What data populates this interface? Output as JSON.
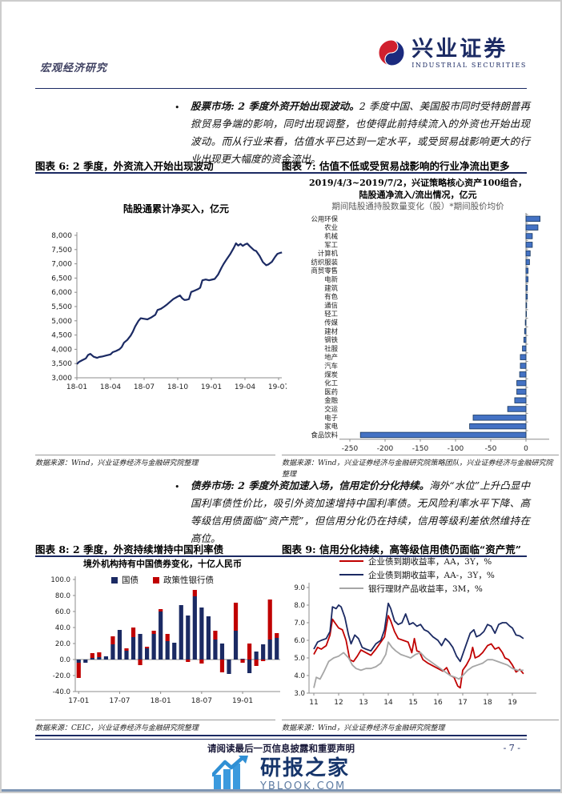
{
  "header": {
    "category": "宏观经济研究",
    "brand": "兴业证券",
    "brand_sub": "INDUSTRIAL SECURITIES"
  },
  "bullets": [
    {
      "marker": "•",
      "lead": "股票市场: 2 季度外资开始出现波动。",
      "body": "2 季度中国、美国股市同时受特朗普再掀贸易争端的影响，同时出现调整，也使得此前持续流入的外资也开始出现波动。而从行业来看，估值水平已达到一定水平，或受贸易战影响更大的行业出现更大幅度的资金流出。"
    },
    {
      "marker": "•",
      "lead": "债券市场: 2 季度外资加速入场，信用定价分化持续。",
      "body": "海外“水位”上升凸显中国利率债性价比，吸引外资加速增持中国利率债。无风险利率水平下降、高等级信用债面临“资产荒”，但信用分化仍在持续，信用等级利差依然维持在高位。"
    }
  ],
  "figures": {
    "fig6": {
      "title": "图表 6: 2 季度，外资流入开始出现波动",
      "source": "数据来源：Wind，兴业证券经济与金融研究院整理"
    },
    "fig7": {
      "title": "图表 7: 估值不低或受贸易战影响的行业净流出更多",
      "subtitle1": "2019/4/3~2019/7/2，兴证策略核心资产100组合，",
      "subtitle2": "陆股通净流入/流出情况，亿元",
      "subtitle3": "期间陆股通持股数量变化（股）*期间股价均价",
      "source": "数据来源：Wind，兴业证券经济与金融研究院策略团队，兴业证券经济与金融研究院整理"
    },
    "fig8": {
      "title": "图表 8: 2 季度，外资持续增持中国利率债",
      "source": "数据来源：CEIC，兴业证券经济与金融研究院整理"
    },
    "fig9": {
      "title": "图表 9: 信用分化持续，高等级信用债仍面临“资产荒”",
      "source": "数据来源：Wind，兴业证券经济与金融研究院整理"
    }
  },
  "footer": {
    "disclaimer": "请阅读最后一页信息披露和重要声明",
    "page_number": "- 7 -",
    "watermark_title": "研报之家",
    "watermark_domain": "YBLOOK.COM"
  },
  "colors": {
    "navy": "#1b2a63",
    "red": "#c00000",
    "gray_line": "#a6a6a6",
    "bar_blue": "#4472c4",
    "bar_blue_border": "#17375e",
    "axis": "#8c8c8c",
    "rule_navy": "#1b2a63",
    "watermark_blue": "#3b9ade"
  },
  "chart_data": [
    {
      "id": "fig6",
      "type": "line",
      "title": "陆股通累计净买入，亿元",
      "color": "#1b2a63",
      "ylim": [
        3000,
        8000
      ],
      "y_step": 500,
      "x_ticks": [
        "18-01",
        "18-04",
        "18-07",
        "18-10",
        "19-01",
        "19-04",
        "19-07"
      ],
      "x_tick_months": [
        0,
        3,
        6,
        9,
        12,
        15,
        18
      ],
      "points": [
        [
          0,
          3480
        ],
        [
          0.2,
          3560
        ],
        [
          0.5,
          3620
        ],
        [
          0.8,
          3680
        ],
        [
          1.0,
          3800
        ],
        [
          1.2,
          3840
        ],
        [
          1.5,
          3740
        ],
        [
          1.8,
          3700
        ],
        [
          2.0,
          3730
        ],
        [
          2.3,
          3750
        ],
        [
          2.6,
          3780
        ],
        [
          3.0,
          3820
        ],
        [
          3.2,
          3900
        ],
        [
          3.5,
          3940
        ],
        [
          3.8,
          4000
        ],
        [
          4.0,
          4080
        ],
        [
          4.2,
          4230
        ],
        [
          4.5,
          4330
        ],
        [
          4.8,
          4480
        ],
        [
          5.0,
          4620
        ],
        [
          5.2,
          4800
        ],
        [
          5.5,
          5000
        ],
        [
          5.7,
          5090
        ],
        [
          6.0,
          5070
        ],
        [
          6.3,
          5050
        ],
        [
          6.6,
          5110
        ],
        [
          7.0,
          5210
        ],
        [
          7.2,
          5380
        ],
        [
          7.5,
          5420
        ],
        [
          7.8,
          5500
        ],
        [
          8.0,
          5560
        ],
        [
          8.3,
          5660
        ],
        [
          8.6,
          5760
        ],
        [
          9.0,
          5850
        ],
        [
          9.2,
          5890
        ],
        [
          9.4,
          5790
        ],
        [
          9.6,
          5730
        ],
        [
          9.8,
          5740
        ],
        [
          10.0,
          5760
        ],
        [
          10.2,
          6010
        ],
        [
          10.5,
          6060
        ],
        [
          10.8,
          6110
        ],
        [
          11.0,
          6160
        ],
        [
          11.2,
          6420
        ],
        [
          11.5,
          6450
        ],
        [
          11.8,
          6420
        ],
        [
          12.0,
          6440
        ],
        [
          12.3,
          6470
        ],
        [
          12.6,
          6620
        ],
        [
          12.9,
          6860
        ],
        [
          13.1,
          7000
        ],
        [
          13.4,
          7180
        ],
        [
          13.7,
          7350
        ],
        [
          14.0,
          7560
        ],
        [
          14.2,
          7720
        ],
        [
          14.4,
          7640
        ],
        [
          14.6,
          7700
        ],
        [
          14.8,
          7630
        ],
        [
          15.0,
          7680
        ],
        [
          15.2,
          7710
        ],
        [
          15.5,
          7590
        ],
        [
          15.8,
          7480
        ],
        [
          16.0,
          7450
        ],
        [
          16.3,
          7280
        ],
        [
          16.6,
          7060
        ],
        [
          16.9,
          6950
        ],
        [
          17.1,
          6980
        ],
        [
          17.4,
          7070
        ],
        [
          17.7,
          7250
        ],
        [
          17.9,
          7350
        ],
        [
          18.1,
          7380
        ],
        [
          18.3,
          7400
        ]
      ]
    },
    {
      "id": "fig7",
      "type": "bar",
      "orientation": "horizontal",
      "bar_color": "#4472c4",
      "bar_border": "#17375e",
      "xlim": [
        -262,
        28
      ],
      "x_ticks": [
        -250,
        -200,
        -150,
        -100,
        -50,
        0
      ],
      "categories": [
        "公用环保",
        "农业",
        "机械",
        "军工",
        "计算机",
        "纺织服装",
        "商贸零售",
        "电新",
        "建筑",
        "有色",
        "通信",
        "轻工",
        "传媒",
        "建材",
        "钢铁",
        "社服",
        "地产",
        "汽车",
        "煤炭",
        "化工",
        "医药",
        "金融",
        "交运",
        "电子",
        "家电",
        "食品饮料"
      ],
      "values": [
        20,
        17,
        9,
        9,
        6,
        5,
        3,
        3,
        2,
        2,
        1,
        0.5,
        -1,
        -2,
        -3,
        -5,
        -8,
        -8,
        -9,
        -13,
        -13,
        -16,
        -26,
        -75,
        -80,
        -235
      ]
    },
    {
      "id": "fig8",
      "type": "stacked-bar",
      "title": "境外机构持有中国债券变化，十亿人民币",
      "ylim": [
        -40,
        100
      ],
      "y_step": 20,
      "x_tick_labels": [
        "17-01",
        "17-07",
        "18-01",
        "18-07",
        "19-01"
      ],
      "x_tick_positions": [
        0,
        6,
        12,
        18,
        24
      ],
      "n_months": 30,
      "series": [
        {
          "name": "国债",
          "color": "#1b2a63",
          "values": [
            -4,
            -4,
            2,
            3,
            4,
            19,
            37,
            11,
            28,
            32,
            14,
            32,
            60,
            23,
            21,
            68,
            55,
            79,
            65,
            54,
            25,
            20,
            -18,
            36,
            1,
            -17,
            10,
            19,
            25,
            27
          ]
        },
        {
          "name": "政策性银行债",
          "color": "#c00000",
          "values": [
            -19,
            0,
            6,
            6,
            0,
            10,
            0,
            3,
            12,
            -7,
            2,
            4,
            3,
            9,
            0,
            0,
            -3,
            8,
            -5,
            0,
            11,
            -16,
            0,
            35,
            -4,
            20,
            -8,
            -2,
            50,
            6
          ]
        }
      ]
    },
    {
      "id": "fig9",
      "type": "line",
      "ylim": [
        3.0,
        9.0
      ],
      "y_step": 1.0,
      "xlim": [
        10.85,
        19.9
      ],
      "x_ticks": [
        11,
        12,
        13,
        14,
        15,
        16,
        17,
        18,
        19
      ],
      "series": [
        {
          "name": "企业债到期收益率，AA，3Y，%",
          "color": "#c00000",
          "points": [
            [
              11.0,
              5.2
            ],
            [
              11.15,
              5.6
            ],
            [
              11.3,
              5.5
            ],
            [
              11.5,
              5.7
            ],
            [
              11.65,
              6.3
            ],
            [
              11.75,
              7.2
            ],
            [
              11.85,
              7.0
            ],
            [
              12.0,
              6.7
            ],
            [
              12.15,
              6.6
            ],
            [
              12.3,
              6.0
            ],
            [
              12.45,
              4.9
            ],
            [
              12.6,
              4.8
            ],
            [
              12.75,
              5.1
            ],
            [
              12.9,
              5.45
            ],
            [
              13.1,
              5.3
            ],
            [
              13.3,
              5.15
            ],
            [
              13.5,
              5.5
            ],
            [
              13.7,
              5.9
            ],
            [
              13.85,
              6.2
            ],
            [
              14.0,
              7.4
            ],
            [
              14.1,
              7.1
            ],
            [
              14.25,
              6.5
            ],
            [
              14.4,
              6.1
            ],
            [
              14.6,
              6.0
            ],
            [
              14.8,
              5.9
            ],
            [
              14.95,
              5.3
            ],
            [
              15.05,
              6.1
            ],
            [
              15.15,
              5.4
            ],
            [
              15.25,
              5.35
            ],
            [
              15.4,
              4.9
            ],
            [
              15.6,
              4.7
            ],
            [
              15.8,
              4.55
            ],
            [
              16.0,
              4.4
            ],
            [
              16.2,
              4.25
            ],
            [
              16.35,
              4.45
            ],
            [
              16.5,
              4.0
            ],
            [
              16.65,
              3.9
            ],
            [
              16.8,
              3.4
            ],
            [
              16.9,
              3.3
            ],
            [
              17.0,
              4.3
            ],
            [
              17.15,
              4.6
            ],
            [
              17.3,
              5.0
            ],
            [
              17.4,
              5.6
            ],
            [
              17.5,
              5.0
            ],
            [
              17.65,
              5.1
            ],
            [
              17.8,
              5.3
            ],
            [
              18.0,
              5.7
            ],
            [
              18.15,
              5.8
            ],
            [
              18.3,
              5.5
            ],
            [
              18.45,
              5.6
            ],
            [
              18.6,
              5.3
            ],
            [
              18.7,
              5.0
            ],
            [
              18.85,
              4.9
            ],
            [
              19.0,
              4.6
            ],
            [
              19.15,
              4.2
            ],
            [
              19.3,
              4.35
            ],
            [
              19.45,
              4.1
            ]
          ]
        },
        {
          "name": "企业债到期收益率，AA-，3Y，%",
          "color": "#1b2a63",
          "points": [
            [
              11.0,
              5.5
            ],
            [
              11.15,
              5.9
            ],
            [
              11.3,
              6.0
            ],
            [
              11.5,
              6.1
            ],
            [
              11.65,
              6.5
            ],
            [
              11.75,
              7.9
            ],
            [
              11.9,
              7.8
            ],
            [
              12.0,
              8.0
            ],
            [
              12.1,
              7.9
            ],
            [
              12.25,
              7.3
            ],
            [
              12.4,
              6.3
            ],
            [
              12.5,
              5.8
            ],
            [
              12.65,
              6.3
            ],
            [
              12.8,
              6.1
            ],
            [
              12.95,
              5.6
            ],
            [
              13.1,
              5.5
            ],
            [
              13.3,
              5.4
            ],
            [
              13.5,
              5.8
            ],
            [
              13.7,
              6.0
            ],
            [
              13.85,
              6.6
            ],
            [
              14.0,
              8.1
            ],
            [
              14.1,
              7.8
            ],
            [
              14.25,
              7.1
            ],
            [
              14.4,
              6.9
            ],
            [
              14.55,
              7.0
            ],
            [
              14.7,
              7.5
            ],
            [
              14.85,
              6.9
            ],
            [
              15.0,
              7.0
            ],
            [
              15.15,
              6.8
            ],
            [
              15.3,
              6.9
            ],
            [
              15.45,
              6.6
            ],
            [
              15.6,
              6.5
            ],
            [
              15.8,
              6.2
            ],
            [
              16.0,
              6.0
            ],
            [
              16.15,
              5.7
            ],
            [
              16.3,
              6.1
            ],
            [
              16.45,
              5.9
            ],
            [
              16.6,
              5.6
            ],
            [
              16.75,
              5.1
            ],
            [
              16.9,
              4.8
            ],
            [
              17.0,
              5.2
            ],
            [
              17.15,
              5.8
            ],
            [
              17.3,
              6.4
            ],
            [
              17.45,
              6.6
            ],
            [
              17.55,
              6.2
            ],
            [
              17.7,
              6.3
            ],
            [
              17.85,
              6.5
            ],
            [
              18.0,
              6.9
            ],
            [
              18.15,
              6.8
            ],
            [
              18.3,
              6.4
            ],
            [
              18.45,
              6.9
            ],
            [
              18.6,
              7.0
            ],
            [
              18.75,
              7.0
            ],
            [
              18.9,
              6.8
            ],
            [
              19.0,
              6.7
            ],
            [
              19.15,
              6.3
            ],
            [
              19.3,
              6.25
            ],
            [
              19.45,
              6.1
            ]
          ]
        },
        {
          "name": "银行理财产品收益率，3M，%",
          "color": "#a6a6a6",
          "points": [
            [
              11.0,
              3.3
            ],
            [
              11.1,
              3.9
            ],
            [
              11.25,
              3.8
            ],
            [
              11.4,
              4.2
            ],
            [
              11.6,
              4.8
            ],
            [
              11.8,
              5.0
            ],
            [
              12.0,
              5.1
            ],
            [
              12.2,
              5.3
            ],
            [
              12.4,
              5.0
            ],
            [
              12.55,
              4.6
            ],
            [
              12.7,
              4.4
            ],
            [
              12.9,
              4.3
            ],
            [
              13.1,
              4.4
            ],
            [
              13.3,
              4.4
            ],
            [
              13.5,
              4.5
            ],
            [
              13.7,
              4.7
            ],
            [
              13.9,
              5.2
            ],
            [
              14.0,
              5.9
            ],
            [
              14.15,
              5.6
            ],
            [
              14.3,
              5.4
            ],
            [
              14.5,
              5.2
            ],
            [
              14.7,
              5.1
            ],
            [
              14.9,
              5.0
            ],
            [
              15.1,
              5.2
            ],
            [
              15.3,
              5.3
            ],
            [
              15.5,
              5.0
            ],
            [
              15.7,
              4.8
            ],
            [
              15.9,
              4.6
            ],
            [
              16.1,
              4.4
            ],
            [
              16.3,
              4.2
            ],
            [
              16.5,
              4.0
            ],
            [
              16.7,
              3.9
            ],
            [
              16.85,
              3.8
            ],
            [
              17.0,
              4.0
            ],
            [
              17.2,
              4.3
            ],
            [
              17.4,
              4.5
            ],
            [
              17.6,
              4.6
            ],
            [
              17.8,
              4.7
            ],
            [
              18.0,
              4.9
            ],
            [
              18.2,
              4.9
            ],
            [
              18.4,
              4.8
            ],
            [
              18.6,
              4.7
            ],
            [
              18.8,
              4.6
            ],
            [
              19.0,
              4.4
            ],
            [
              19.2,
              4.3
            ],
            [
              19.45,
              4.3
            ]
          ]
        }
      ]
    }
  ]
}
